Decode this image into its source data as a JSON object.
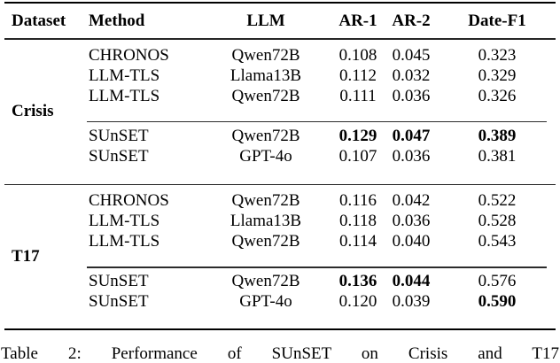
{
  "page": {
    "background": "#ffffff",
    "text_color": "#000000",
    "rule_heavy_color": "#000000",
    "rule_light_color": "#2b2b2b"
  },
  "table": {
    "headers": {
      "dataset": "Dataset",
      "method": "Method",
      "llm": "LLM",
      "ar1": "AR-1",
      "ar2": "AR-2",
      "datef1": "Date-F1"
    },
    "sections": [
      {
        "dataset": "Crisis",
        "rows": [
          {
            "method": "CHRONOS",
            "llm": "Qwen72B",
            "ar1": "0.108",
            "ar2": "0.045",
            "datef1": "0.323"
          },
          {
            "method": "LLM-TLS",
            "llm": "Llama13B",
            "ar1": "0.112",
            "ar2": "0.032",
            "datef1": "0.329"
          },
          {
            "method": "LLM-TLS",
            "llm": "Qwen72B",
            "ar1": "0.111",
            "ar2": "0.036",
            "datef1": "0.326"
          },
          {
            "method": "SUnSET",
            "llm": "Qwen72B",
            "ar1": "0.129",
            "ar2": "0.047",
            "datef1": "0.389"
          },
          {
            "method": "SUnSET",
            "llm": "GPT-4o",
            "ar1": "0.107",
            "ar2": "0.036",
            "datef1": "0.381"
          }
        ]
      },
      {
        "dataset": "T17",
        "rows": [
          {
            "method": "CHRONOS",
            "llm": "Qwen72B",
            "ar1": "0.116",
            "ar2": "0.042",
            "datef1": "0.522"
          },
          {
            "method": "LLM-TLS",
            "llm": "Llama13B",
            "ar1": "0.118",
            "ar2": "0.036",
            "datef1": "0.528"
          },
          {
            "method": "LLM-TLS",
            "llm": "Qwen72B",
            "ar1": "0.114",
            "ar2": "0.040",
            "datef1": "0.543"
          },
          {
            "method": "SUnSET",
            "llm": "Qwen72B",
            "ar1": "0.136",
            "ar2": "0.044",
            "datef1": "0.576"
          },
          {
            "method": "SUnSET",
            "llm": "GPT-4o",
            "ar1": "0.120",
            "ar2": "0.039",
            "datef1": "0.590"
          }
        ]
      }
    ]
  },
  "caption": "Table 2: Performance of SUnSET on Crisis and T17"
}
